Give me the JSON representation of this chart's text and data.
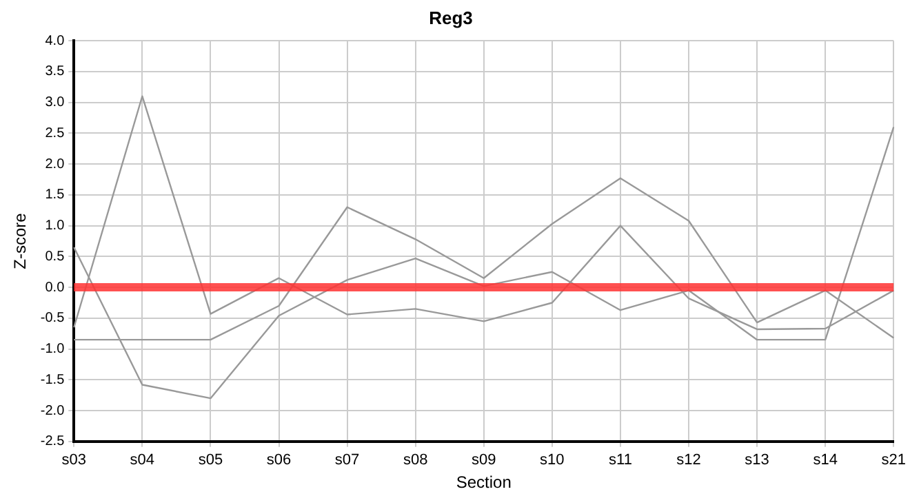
{
  "chart_data": {
    "type": "line",
    "title": "Reg3",
    "xlabel": "Section",
    "ylabel": "Z-score",
    "categories": [
      "s03",
      "s04",
      "s05",
      "s06",
      "s07",
      "s08",
      "s09",
      "s10",
      "s11",
      "s12",
      "s13",
      "s14",
      "s21"
    ],
    "series": [
      {
        "color": "#999999",
        "values": [
          -0.65,
          3.1,
          -0.43,
          0.15,
          -0.44,
          -0.35,
          -0.55,
          -0.25,
          1.0,
          -0.18,
          -0.68,
          -0.67,
          -0.05
        ]
      },
      {
        "color": "#999999",
        "values": [
          -0.85,
          -0.85,
          -0.85,
          -0.3,
          1.3,
          0.78,
          0.15,
          1.03,
          1.77,
          1.08,
          -0.57,
          -0.05,
          -0.82
        ]
      },
      {
        "color": "#999999",
        "values": [
          0.65,
          -1.58,
          -1.8,
          -0.46,
          0.12,
          0.47,
          0.02,
          0.25,
          -0.37,
          -0.05,
          -0.85,
          -0.85,
          2.6
        ]
      }
    ],
    "ylim": [
      -2.5,
      4.0
    ],
    "yticks": [
      {
        "value": -2.5,
        "label": "-2.5"
      },
      {
        "value": -2,
        "label": "-2.0"
      },
      {
        "value": -1.5,
        "label": "-1.5"
      },
      {
        "value": -1,
        "label": "-1.0"
      },
      {
        "value": -0.5,
        "label": "-0.5"
      },
      {
        "value": 0,
        "label": "0.0"
      },
      {
        "value": 0.5,
        "label": "0.5"
      },
      {
        "value": 1,
        "label": "1.0"
      },
      {
        "value": 1.5,
        "label": "1.5"
      },
      {
        "value": 2,
        "label": "2.0"
      },
      {
        "value": 2.5,
        "label": "2.5"
      },
      {
        "value": 3,
        "label": "3.0"
      },
      {
        "value": 3.5,
        "label": "3.5"
      },
      {
        "value": 4,
        "label": "4.0"
      }
    ],
    "ref_lines": [
      {
        "axis": "y",
        "value": 0,
        "color": "#ff3333"
      }
    ],
    "grid": true,
    "legend": false,
    "marker": "none",
    "line_style": "solid"
  }
}
